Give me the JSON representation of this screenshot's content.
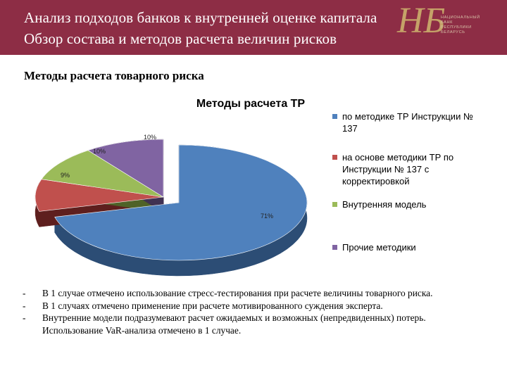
{
  "header": {
    "title_line1": "Анализ подходов банков к внутренней оценке капитала",
    "title_line2": "Обзор состава и методов расчета величин рисков",
    "logo_monogram": "НБ",
    "logo_text": [
      "НАЦИОНАЛЬНЫЙ",
      "БАНК",
      "РЕСПУБЛИКИ",
      "БЕЛАРУСЬ"
    ]
  },
  "section_title": "Методы расчета товарного риска",
  "chart_data": {
    "type": "pie",
    "style": "3d-exploded",
    "title": "Методы расчета ТР",
    "legend_position": "right",
    "slices": [
      {
        "label": "по методике ТР Инструкции № 137",
        "value": 71,
        "value_label": "71%",
        "color": "#4f81bd",
        "side_color": "#2c4d75"
      },
      {
        "label": "на основе методики ТР по Инструкции № 137 с корректировкой",
        "value": 9,
        "value_label": "9%",
        "color": "#c0504d",
        "side_color": "#5e1f1e"
      },
      {
        "label": "Внутренняя модель",
        "value": 10,
        "value_label": "10%",
        "color": "#9bbb59",
        "side_color": "#4f6228"
      },
      {
        "label": "Прочие методики",
        "value": 10,
        "value_label": "10%",
        "color": "#8064a2",
        "side_color": "#403152"
      }
    ],
    "legend_lines": [
      [
        "по методике ТР Инструкции №",
        "137"
      ],
      [
        "на основе методики ТР по",
        "Инструкции № 137 с",
        "корректировкой"
      ],
      [
        "Внутренняя модель"
      ],
      [
        "Прочие методики"
      ]
    ]
  },
  "notes": [
    {
      "dash": "-",
      "text": "В 1 случае отмечено использование стресс-тестирования при расчете величины товарного риска."
    },
    {
      "dash": "-",
      "text": "В 1 случаях отмечено применение при расчете мотивированного суждения эксперта."
    },
    {
      "dash": "-",
      "text": "Внутренние модели подразумевают расчет ожидаемых и возможных (непредвиденных) потерь. Использование VaR-анализа отмечено в 1 случае."
    }
  ]
}
